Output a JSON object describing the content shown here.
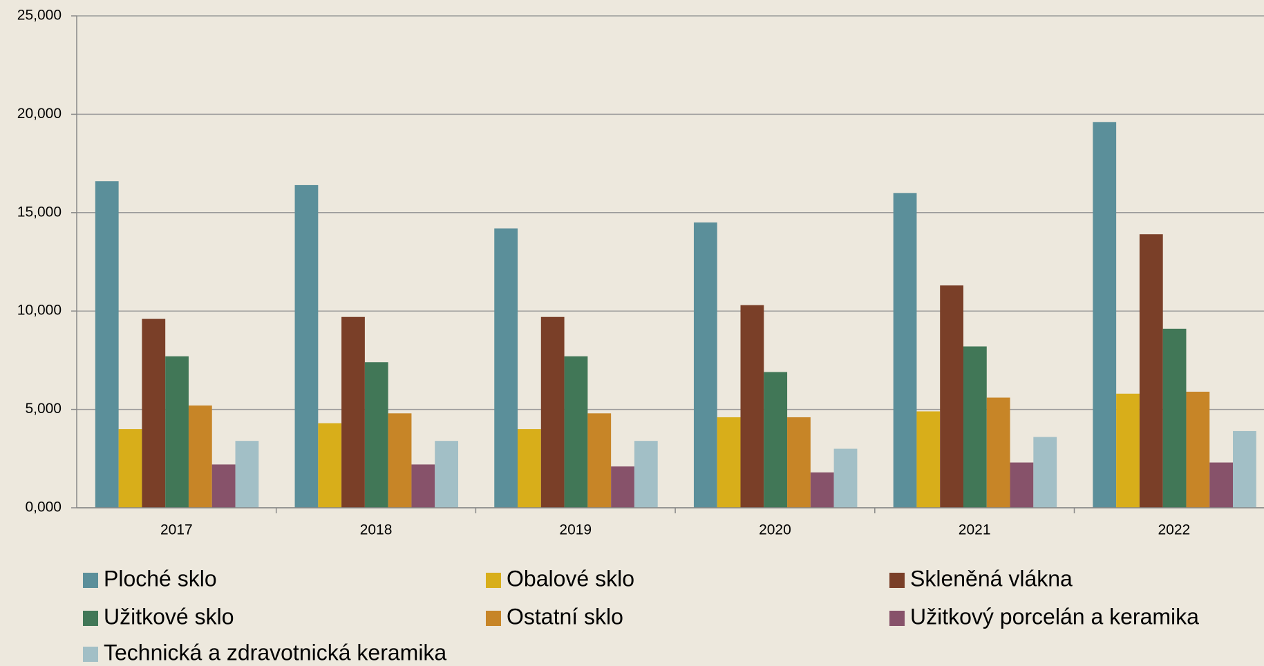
{
  "chart_data": {
    "type": "bar",
    "categories": [
      "2017",
      "2018",
      "2019",
      "2020",
      "2021",
      "2022"
    ],
    "series": [
      {
        "name": "Ploché sklo",
        "color": "#5b8f9a",
        "values": [
          16600,
          16400,
          14200,
          14500,
          16000,
          19600
        ]
      },
      {
        "name": "Obalové sklo",
        "color": "#d8ae1a",
        "values": [
          4000,
          4300,
          4000,
          4600,
          4900,
          5800
        ]
      },
      {
        "name": "Skleněná vlákna",
        "color": "#7a3f28",
        "values": [
          9600,
          9700,
          9700,
          10300,
          11300,
          13900
        ]
      },
      {
        "name": "Užitkové sklo",
        "color": "#417757",
        "values": [
          7700,
          7400,
          7700,
          6900,
          8200,
          9100
        ]
      },
      {
        "name": "Ostatní sklo",
        "color": "#c78527",
        "values": [
          5200,
          4800,
          4800,
          4600,
          5600,
          5900
        ]
      },
      {
        "name": "Užitkový porcelán a keramika",
        "color": "#87526a",
        "values": [
          2200,
          2200,
          2100,
          1800,
          2300,
          2300
        ]
      },
      {
        "name": "Technická a zdravotnická keramika",
        "color": "#a2bfc6",
        "values": [
          3400,
          3400,
          3400,
          3000,
          3600,
          3900
        ]
      }
    ],
    "ylim": [
      0,
      25000
    ],
    "yticks": [
      {
        "value": 0,
        "label": "0,000"
      },
      {
        "value": 5000,
        "label": "5,000"
      },
      {
        "value": 10000,
        "label": "10,000"
      },
      {
        "value": 15000,
        "label": "15,000"
      },
      {
        "value": 20000,
        "label": "20,000"
      },
      {
        "value": 25000,
        "label": "25,000"
      }
    ],
    "grid": true
  }
}
